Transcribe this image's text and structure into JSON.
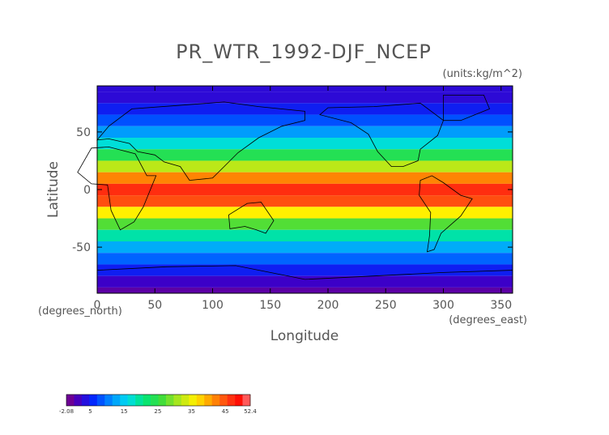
{
  "chart_data": {
    "type": "heatmap",
    "title": "PR_WTR_1992-DJF_NCEP",
    "units_label": "(units:kg/m^2)",
    "xlabel": "Longitude",
    "ylabel": "Latitude",
    "x_unit_label": "(degrees_east)",
    "y_unit_label": "(degrees_north)",
    "xlim": [
      0,
      360
    ],
    "ylim": [
      -90,
      90
    ],
    "xticks": [
      0,
      50,
      100,
      150,
      200,
      250,
      300,
      350
    ],
    "yticks": [
      -50,
      0,
      50
    ],
    "colorbar": {
      "min": -2.08,
      "max": 52.4,
      "ticks": [
        "-2.08",
        "5",
        "15",
        "25",
        "35",
        "45",
        "52.4"
      ]
    },
    "rows": [
      {
        "lat": 90,
        "value": 3
      },
      {
        "lat": 80,
        "value": 3
      },
      {
        "lat": 70,
        "value": 5
      },
      {
        "lat": 60,
        "value": 8
      },
      {
        "lat": 50,
        "value": 12
      },
      {
        "lat": 40,
        "value": 17
      },
      {
        "lat": 30,
        "value": 24
      },
      {
        "lat": 20,
        "value": 32
      },
      {
        "lat": 10,
        "value": 42
      },
      {
        "lat": 0,
        "value": 47
      },
      {
        "lat": -10,
        "value": 45
      },
      {
        "lat": -20,
        "value": 36
      },
      {
        "lat": -30,
        "value": 27
      },
      {
        "lat": -40,
        "value": 19
      },
      {
        "lat": -50,
        "value": 13
      },
      {
        "lat": -60,
        "value": 9
      },
      {
        "lat": -70,
        "value": 5
      },
      {
        "lat": -80,
        "value": 2
      },
      {
        "lat": -90,
        "value": 0
      }
    ]
  }
}
